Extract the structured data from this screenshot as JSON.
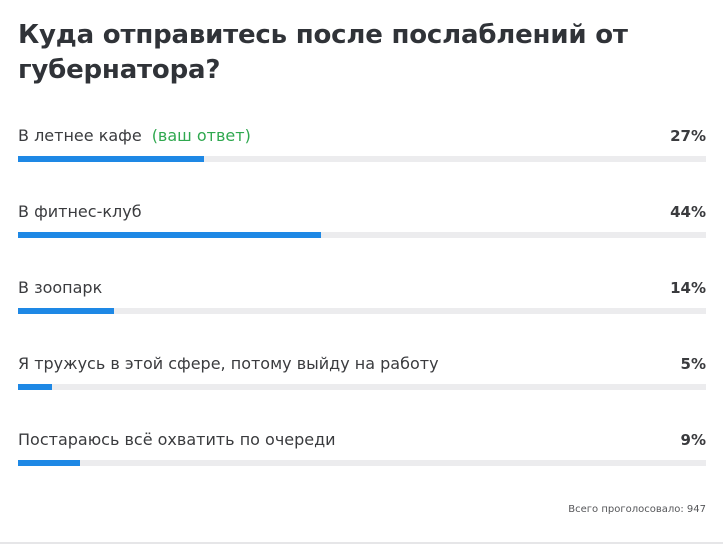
{
  "poll": {
    "title": "Куда отправитесь после послаблений от губернатора?",
    "your_answer_label": "(ваш ответ)",
    "options": [
      {
        "label": "В летнее кафе",
        "percent_label": "27%",
        "percent": 27,
        "is_your_answer": true
      },
      {
        "label": "В фитнес-клуб",
        "percent_label": "44%",
        "percent": 44,
        "is_your_answer": false
      },
      {
        "label": "В зоопарк",
        "percent_label": "14%",
        "percent": 14,
        "is_your_answer": false
      },
      {
        "label": "Я тружусь в этой сфере, потому выйду на работу",
        "percent_label": "5%",
        "percent": 5,
        "is_your_answer": false
      },
      {
        "label": "Постараюсь всё охватить по очереди",
        "percent_label": "9%",
        "percent": 9,
        "is_your_answer": false
      }
    ],
    "total_votes": "Всего проголосовало: 947"
  },
  "colors": {
    "bar_fill": "#1e88e5",
    "bar_track": "#ececee",
    "your_answer": "#2fa84f"
  }
}
